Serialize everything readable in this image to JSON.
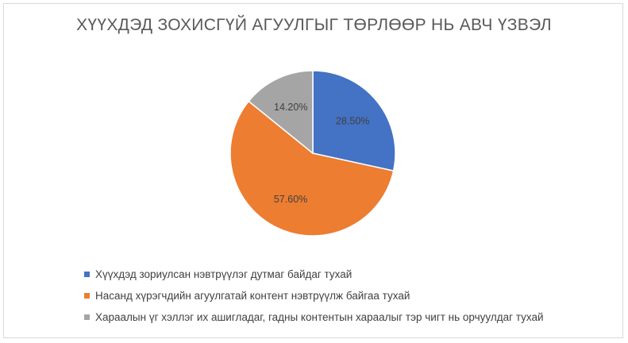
{
  "chart_data": {
    "type": "pie",
    "title": "ХҮҮХДЭД ЗОХИСГҮЙ АГУУЛГЫГ ТӨРЛӨӨР НЬ АВЧ ҮЗВЭЛ",
    "slices": [
      {
        "name": "Хүүхдэд зориулсан нэвтрүүлэг дутмаг байдаг тухай",
        "value": 28.5,
        "label": "28.50%",
        "color": "#4472c4"
      },
      {
        "name": "Насанд хүрэгчдийн агуулгатай контент нэвтрүүлж байгаа тухай",
        "value": 57.6,
        "label": "57.60%",
        "color": "#ed7d31"
      },
      {
        "name": "Хараалын үг хэллэг их ашигладаг, гадны контентын хараалыг тэр чигт нь орчуулдаг тухай",
        "value": 14.2,
        "label": "14.20%",
        "color": "#a5a5a5"
      }
    ],
    "legend_position": "bottom"
  }
}
